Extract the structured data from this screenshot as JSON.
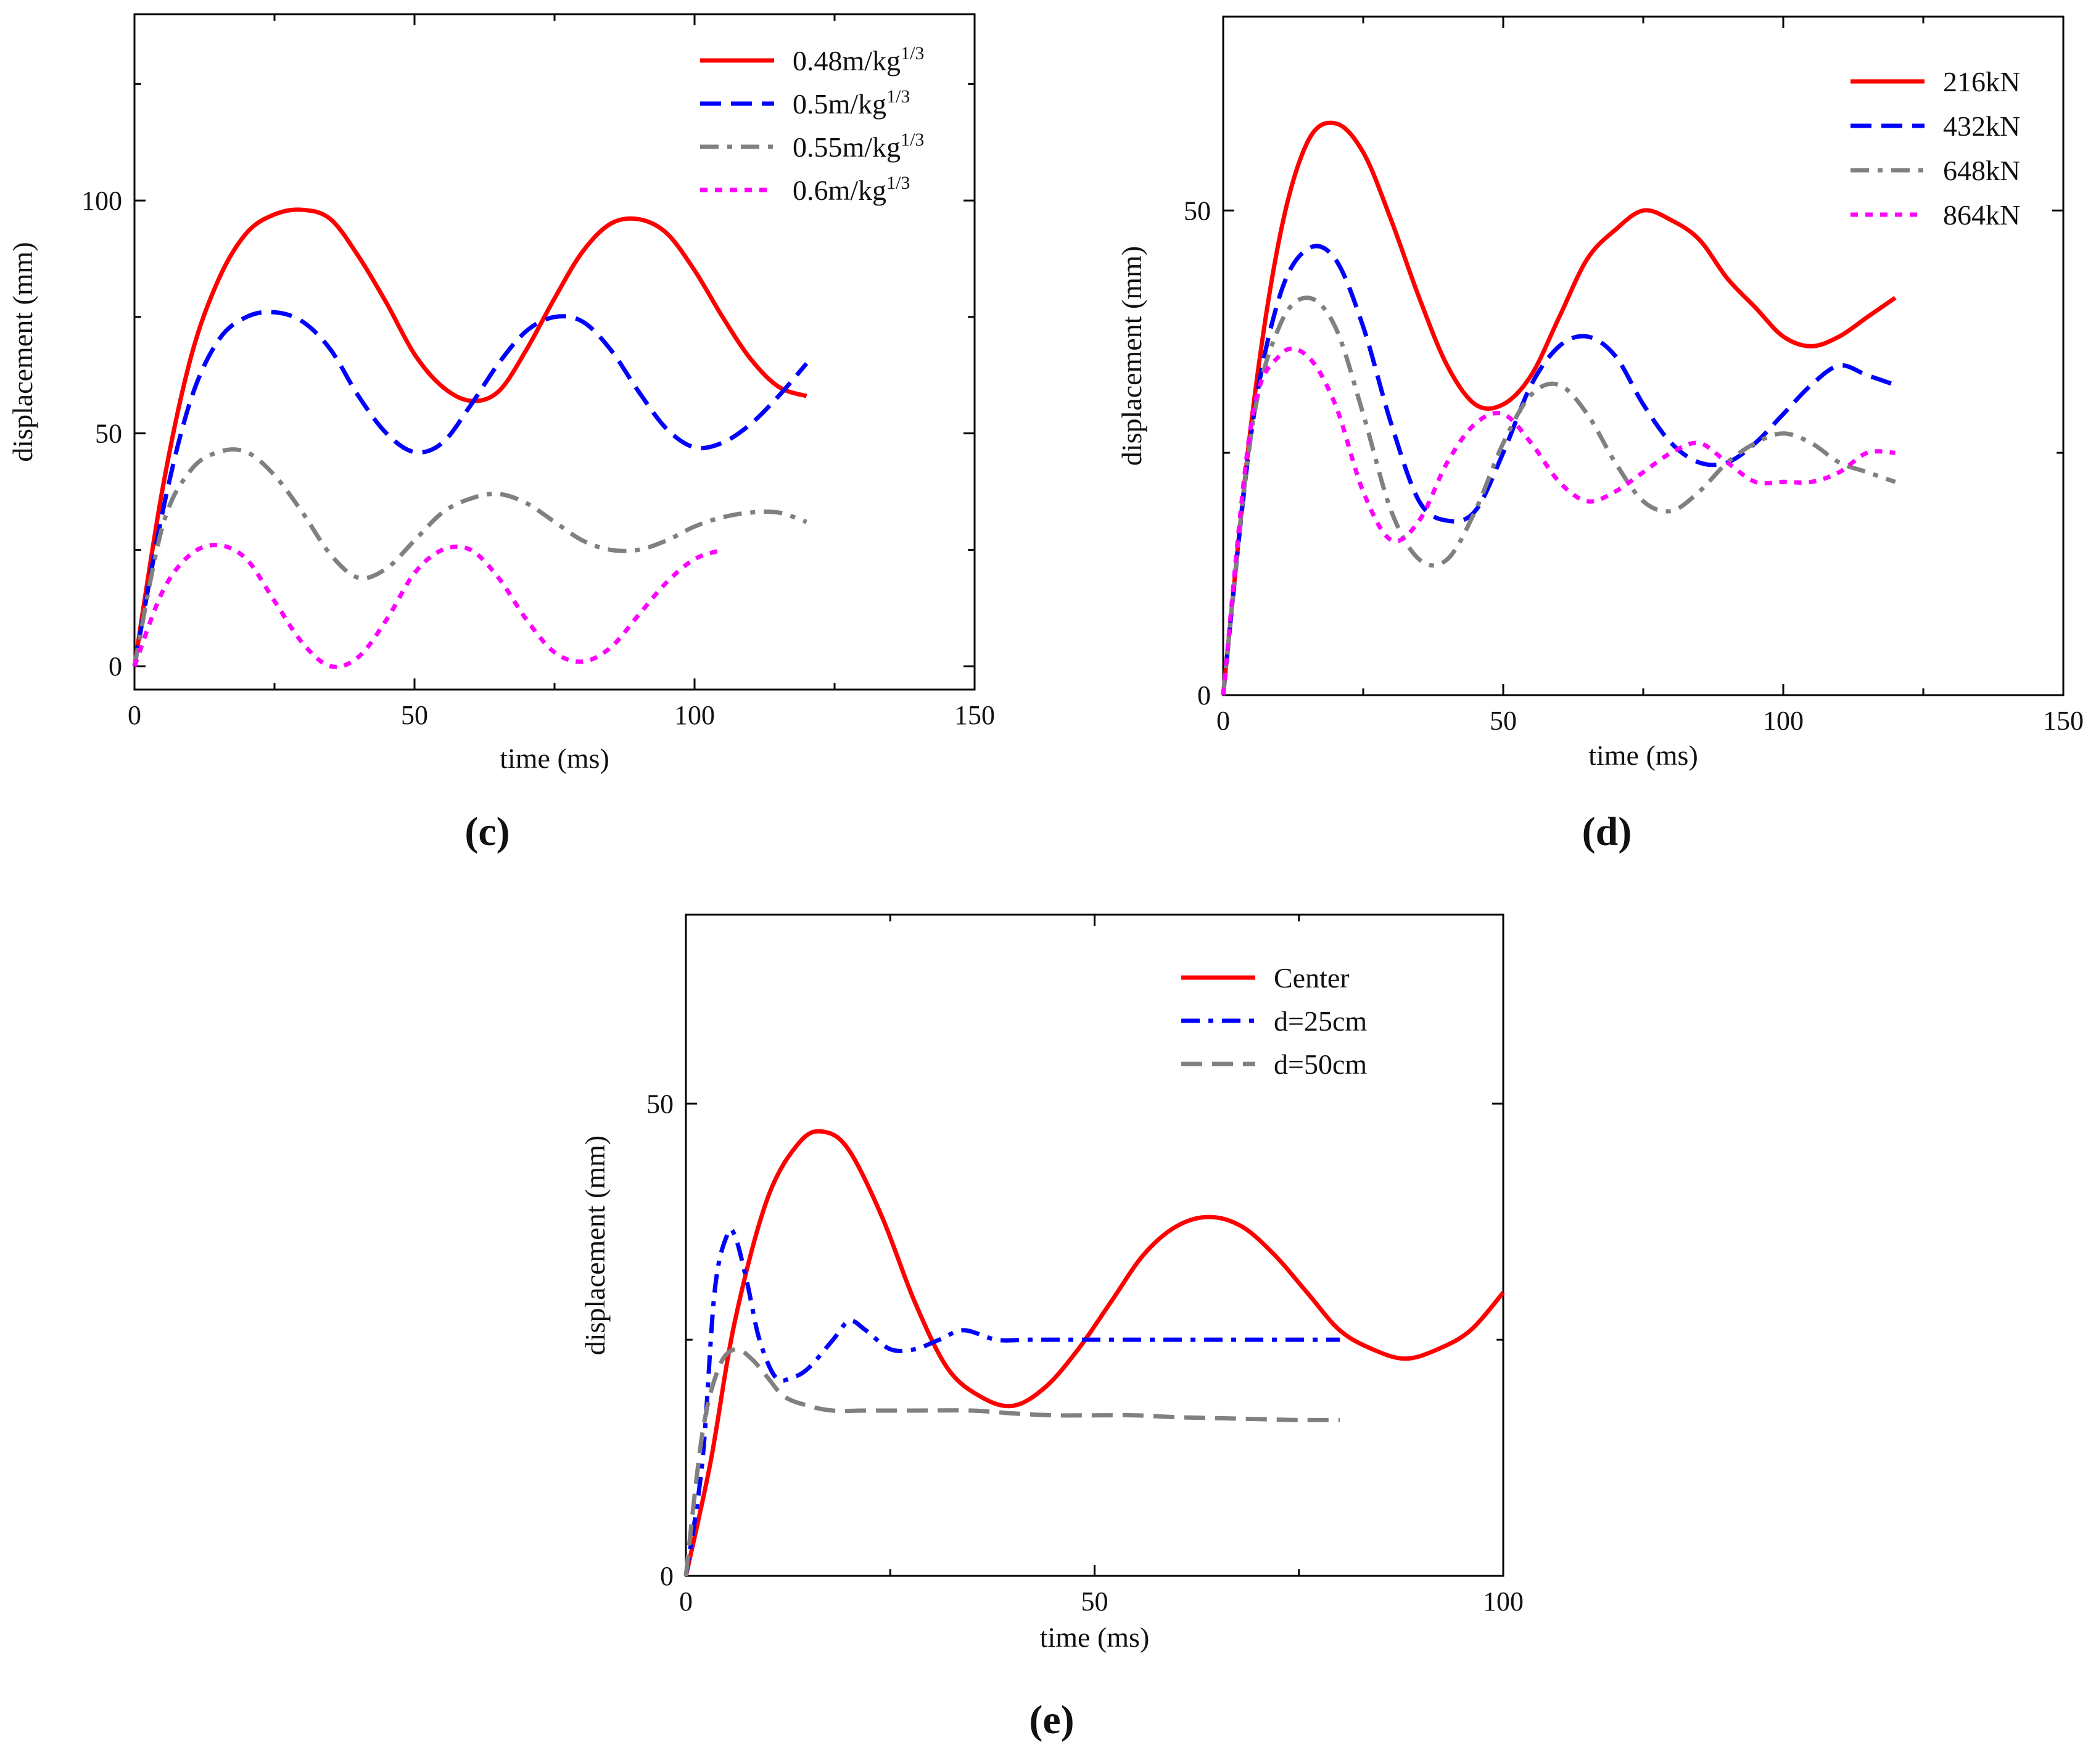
{
  "chart_data": [
    {
      "panel": "(c)",
      "type": "line",
      "xlabel": "time (ms)",
      "ylabel": "displacement (mm)",
      "xlim": [
        0,
        150
      ],
      "ylim": [
        -5,
        140
      ],
      "xticks": [
        0,
        50,
        100,
        150
      ],
      "yticks": [
        0,
        50,
        100
      ],
      "legend_position": "top-right",
      "series": [
        {
          "name": "0.48m/kg",
          "name_sup": "1/3",
          "color": "#ff0000",
          "style": "solid",
          "x": [
            0,
            5,
            10,
            15,
            20,
            25,
            30,
            35,
            40,
            45,
            50,
            55,
            60,
            65,
            70,
            75,
            80,
            85,
            90,
            95,
            100,
            105,
            110,
            115,
            120
          ],
          "y": [
            0,
            38,
            66,
            83,
            93,
            97,
            98,
            96,
            88,
            78,
            67,
            60,
            57,
            59,
            68,
            79,
            89,
            95,
            96,
            93,
            85,
            75,
            66,
            60,
            58
          ]
        },
        {
          "name": "0.5m/kg",
          "name_sup": "1/3",
          "color": "#0000ff",
          "style": "dash",
          "x": [
            0,
            5,
            10,
            15,
            20,
            25,
            30,
            35,
            40,
            45,
            50,
            55,
            60,
            65,
            70,
            75,
            80,
            85,
            90,
            95,
            100,
            105,
            110,
            115,
            120
          ],
          "y": [
            0,
            33,
            57,
            70,
            75,
            76,
            74,
            68,
            58,
            50,
            46,
            48,
            56,
            65,
            72,
            75,
            74,
            68,
            59,
            51,
            47,
            48,
            52,
            58,
            65
          ]
        },
        {
          "name": "0.55m/kg",
          "name_sup": "1/3",
          "color": "#808080",
          "style": "dashdot",
          "x": [
            0,
            5,
            10,
            15,
            20,
            25,
            30,
            35,
            40,
            45,
            50,
            55,
            60,
            65,
            70,
            75,
            80,
            85,
            90,
            95,
            100,
            105,
            110,
            115,
            120
          ],
          "y": [
            0,
            30,
            42,
            46,
            46,
            41,
            33,
            24,
            19,
            21,
            27,
            33,
            36,
            37,
            35,
            31,
            27,
            25,
            25,
            27,
            30,
            32,
            33,
            33,
            31
          ]
        },
        {
          "name": "0.6m/kg",
          "name_sup": "1/3",
          "color": "#ff00ff",
          "style": "dot",
          "x": [
            0,
            5,
            10,
            15,
            20,
            25,
            30,
            35,
            40,
            45,
            50,
            55,
            60,
            65,
            70,
            75,
            80,
            85,
            90,
            95,
            100,
            105
          ],
          "y": [
            0,
            16,
            24,
            26,
            23,
            14,
            5,
            0,
            2,
            10,
            20,
            25,
            25,
            19,
            10,
            3,
            1,
            4,
            11,
            18,
            23,
            25
          ]
        }
      ]
    },
    {
      "panel": "(d)",
      "type": "line",
      "xlabel": "time (ms)",
      "ylabel": "displacement (mm)",
      "xlim": [
        0,
        150
      ],
      "ylim": [
        0,
        70
      ],
      "xticks": [
        0,
        50,
        100,
        150
      ],
      "yticks": [
        0,
        50
      ],
      "legend_position": "top-right",
      "series": [
        {
          "name": "216kN",
          "color": "#ff0000",
          "style": "solid",
          "x": [
            0,
            5,
            10,
            15,
            20,
            25,
            30,
            35,
            40,
            45,
            50,
            55,
            60,
            65,
            70,
            75,
            80,
            85,
            90,
            95,
            100,
            105,
            110,
            115,
            120
          ],
          "y": [
            0,
            28,
            47,
            57,
            59,
            56,
            49,
            41,
            34,
            30,
            30,
            33,
            39,
            45,
            48,
            50,
            49,
            47,
            43,
            40,
            37,
            36,
            37,
            39,
            41
          ]
        },
        {
          "name": "432kN",
          "color": "#0000ff",
          "style": "dash",
          "x": [
            0,
            5,
            10,
            15,
            20,
            25,
            30,
            35,
            40,
            45,
            50,
            55,
            60,
            65,
            70,
            75,
            80,
            85,
            90,
            95,
            100,
            105,
            110,
            115,
            120
          ],
          "y": [
            0,
            27,
            41,
            46,
            45,
            38,
            28,
            20,
            18,
            19,
            25,
            32,
            36,
            37,
            35,
            30,
            26,
            24,
            24,
            26,
            29,
            32,
            34,
            33,
            32
          ]
        },
        {
          "name": "648kN",
          "color": "#808080",
          "style": "dashdot",
          "x": [
            0,
            5,
            10,
            15,
            20,
            25,
            30,
            35,
            40,
            45,
            50,
            55,
            60,
            65,
            70,
            75,
            80,
            85,
            90,
            95,
            100,
            105,
            110,
            115,
            120
          ],
          "y": [
            0,
            27,
            38,
            41,
            38,
            29,
            19,
            14,
            14,
            19,
            26,
            31,
            32,
            29,
            24,
            20,
            19,
            21,
            24,
            26,
            27,
            26,
            24,
            23,
            22
          ]
        },
        {
          "name": "864kN",
          "color": "#ff00ff",
          "style": "dot",
          "x": [
            0,
            5,
            10,
            15,
            20,
            25,
            30,
            35,
            40,
            45,
            50,
            55,
            60,
            65,
            70,
            75,
            80,
            85,
            90,
            95,
            100,
            105,
            110,
            115,
            120
          ],
          "y": [
            0,
            28,
            35,
            35,
            30,
            21,
            16,
            18,
            24,
            28,
            29,
            26,
            22,
            20,
            21,
            23,
            25,
            26,
            24,
            22,
            22,
            22,
            23,
            25,
            25
          ]
        }
      ]
    },
    {
      "panel": "(e)",
      "type": "line",
      "xlabel": "time (ms)",
      "ylabel": "displacement (mm)",
      "xlim": [
        0,
        100
      ],
      "ylim": [
        0,
        70
      ],
      "xticks": [
        0,
        50,
        100
      ],
      "yticks": [
        0,
        50
      ],
      "legend_position": "top-right",
      "series": [
        {
          "name": "Center",
          "color": "#ff0000",
          "style": "solid",
          "x": [
            0,
            3,
            6,
            10,
            14,
            17,
            20,
            24,
            28,
            32,
            36,
            40,
            44,
            48,
            52,
            56,
            60,
            64,
            68,
            72,
            76,
            80,
            84,
            88,
            92,
            96,
            100
          ],
          "y": [
            0,
            12,
            27,
            40,
            46,
            47,
            45,
            38,
            29,
            22,
            19,
            18,
            20,
            24,
            29,
            34,
            37,
            38,
            37,
            34,
            30,
            26,
            24,
            23,
            24,
            26,
            30
          ]
        },
        {
          "name": "d=25cm",
          "color": "#0000ff",
          "style": "dashdot",
          "x": [
            0,
            2,
            3.5,
            5,
            6,
            7.5,
            9,
            11,
            13,
            15,
            18,
            20,
            22,
            25,
            28,
            31,
            34,
            38,
            42,
            46,
            50,
            55,
            60,
            65,
            70,
            75,
            80
          ],
          "y": [
            0,
            12,
            30,
            36,
            36,
            31,
            25,
            21,
            21,
            22,
            25,
            27,
            26,
            24,
            24,
            25,
            26,
            25,
            25,
            25,
            25,
            25,
            25,
            25,
            25,
            25,
            25
          ]
        },
        {
          "name": "d=50cm",
          "color": "#808080",
          "style": "dash",
          "x": [
            0,
            2,
            4,
            6,
            8,
            10,
            12,
            15,
            18,
            22,
            28,
            35,
            40,
            45,
            50,
            55,
            60,
            65,
            70,
            75,
            80
          ],
          "y": [
            0,
            15,
            22,
            24,
            23,
            21,
            19,
            18,
            17.5,
            17.5,
            17.5,
            17.5,
            17.2,
            17,
            17,
            17,
            16.8,
            16.7,
            16.6,
            16.5,
            16.5
          ]
        }
      ]
    }
  ]
}
